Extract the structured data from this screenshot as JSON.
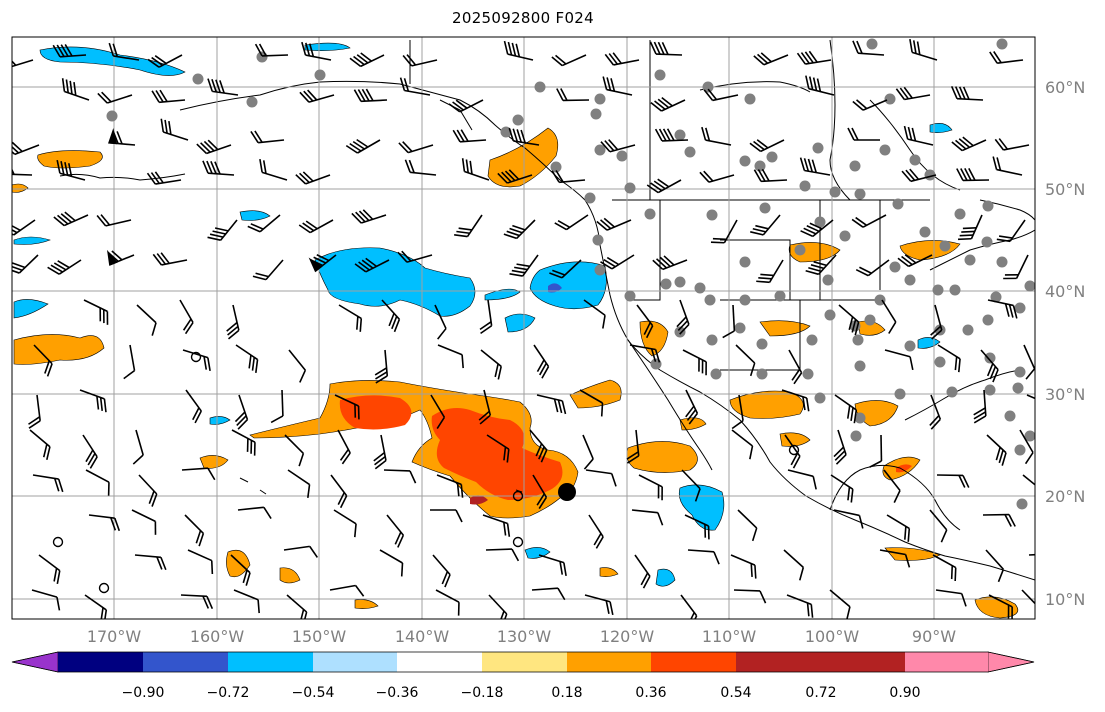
{
  "title": "2025092800 F024",
  "longitude_labels": [
    "170°W",
    "160°W",
    "150°W",
    "140°W",
    "130°W",
    "120°W",
    "110°W",
    "100°W",
    "90°W"
  ],
  "latitude_labels": [
    "60°N",
    "50°N",
    "40°N",
    "30°N",
    "20°N",
    "10°N"
  ],
  "colorbar": {
    "colors": [
      "#9933cc",
      "#000080",
      "#3355cc",
      "#00bfff",
      "#aee0ff",
      "#ffffff",
      "#ffe680",
      "#ffa000",
      "#ff4500",
      "#b22222",
      "#ff88aa"
    ],
    "tick_labels": [
      "−0.90",
      "−0.72",
      "−0.54",
      "−0.36",
      "−0.18",
      "0.18",
      "0.36",
      "0.54",
      "0.72",
      "0.90"
    ]
  },
  "colors": {
    "grid": "#a0a0a0",
    "coast": "#000000",
    "station": "#808080",
    "light_blue": "#00bfff",
    "pale_blue": "#aee0ff",
    "orange": "#ffa000",
    "red_orange": "#ff4500",
    "yellow": "#ffe680",
    "dark_blue": "#3355cc"
  },
  "icons": [
    "wind-barb-icon",
    "station-dot-icon",
    "calm-circle-icon"
  ]
}
